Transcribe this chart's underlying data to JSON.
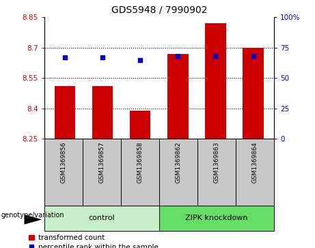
{
  "title": "GDS5948 / 7990902",
  "samples": [
    "GSM1369856",
    "GSM1369857",
    "GSM1369858",
    "GSM1369862",
    "GSM1369863",
    "GSM1369864"
  ],
  "red_values": [
    8.51,
    8.51,
    8.39,
    8.67,
    8.82,
    8.7
  ],
  "blue_values": [
    67,
    67,
    65,
    68,
    68,
    68
  ],
  "ylim_left": [
    8.25,
    8.85
  ],
  "ylim_right": [
    0,
    100
  ],
  "yticks_left": [
    8.25,
    8.4,
    8.55,
    8.7,
    8.85
  ],
  "yticks_right": [
    0,
    25,
    50,
    75,
    100
  ],
  "ytick_labels_left": [
    "8.25",
    "8.4",
    "8.55",
    "8.7",
    "8.85"
  ],
  "ytick_labels_right": [
    "0",
    "25",
    "50",
    "75",
    "100%"
  ],
  "hline_values": [
    8.4,
    8.55,
    8.7
  ],
  "groups": [
    {
      "label": "control",
      "indices": [
        0,
        1,
        2
      ],
      "color": "#c8f0c8"
    },
    {
      "label": "ZIPK knockdown",
      "indices": [
        3,
        4,
        5
      ],
      "color": "#66dd66"
    }
  ],
  "group_label_prefix": "genotype/variation",
  "legend_red_label": "transformed count",
  "legend_blue_label": "percentile rank within the sample",
  "bar_color": "#CC0000",
  "dot_color": "#0000CC",
  "bar_width": 0.55,
  "bar_bottom": 8.25,
  "plot_bg_color": "#ffffff",
  "sample_bg_color": "#c8c8c8",
  "title_fontsize": 10
}
